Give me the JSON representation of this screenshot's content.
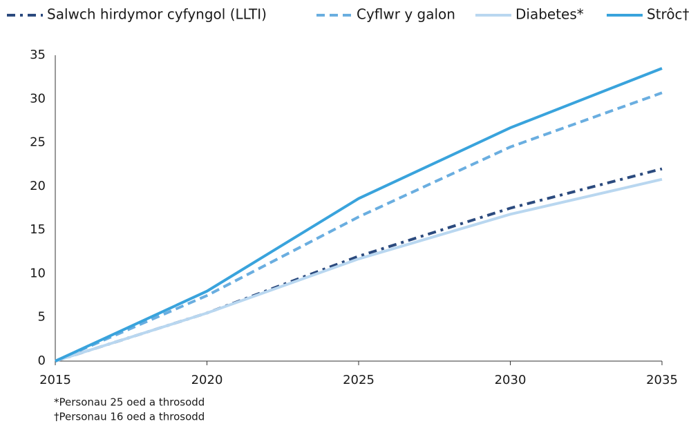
{
  "chart_data": {
    "type": "line",
    "x": [
      2015,
      2020,
      2025,
      2030,
      2035
    ],
    "xlim": [
      2015,
      2035
    ],
    "xticks": [
      2015,
      2020,
      2025,
      2030,
      2035
    ],
    "ylim": [
      0,
      35
    ],
    "yticks": [
      0,
      5,
      10,
      15,
      20,
      25,
      30,
      35
    ],
    "grid": false,
    "series": [
      {
        "name": "Salwch hirdymor cyfyngol (LLTI)",
        "color": "#2b4a7e",
        "linestyle": "dashdot",
        "values": [
          0,
          5.5,
          12,
          17.5,
          22
        ]
      },
      {
        "name": "Cyflwr y galon",
        "color": "#6aaee0",
        "linestyle": "dashed",
        "values": [
          0,
          7.5,
          16.5,
          24.5,
          30.7
        ]
      },
      {
        "name": "Diabetes*",
        "color": "#b9d7f0",
        "linestyle": "solid",
        "values": [
          0,
          5.5,
          11.7,
          16.8,
          20.8
        ]
      },
      {
        "name": "Strôc†",
        "color": "#39a3dc",
        "linestyle": "solid",
        "values": [
          0,
          8,
          18.6,
          26.7,
          33.5
        ]
      }
    ],
    "notes": [
      "*Personau 25 oed a throsodd",
      "†Personau 16 oed a throsodd"
    ]
  }
}
